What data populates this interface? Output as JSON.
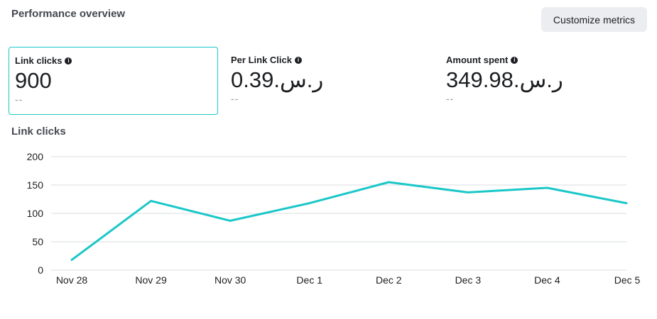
{
  "header": {
    "title": "Performance overview",
    "customize_label": "Customize metrics"
  },
  "metrics": [
    {
      "label": "Link clicks",
      "value": "900",
      "delta": "--",
      "selected": true
    },
    {
      "label": "Per Link Click",
      "value": "0.39.ر.س",
      "delta": "--",
      "selected": false
    },
    {
      "label": "Amount spent",
      "value": "349.98.ر.س",
      "delta": "--",
      "selected": false
    }
  ],
  "icons": {
    "info": "info-icon"
  },
  "colors": {
    "accent": "#1bc7c8",
    "line": "#1bc7c8",
    "grid": "#dadde1",
    "button_bg": "#ebedf0"
  },
  "chart_data": {
    "type": "line",
    "title": "Link clicks",
    "categories": [
      "Nov 28",
      "Nov 29",
      "Nov 30",
      "Dec 1",
      "Dec 2",
      "Dec 3",
      "Dec 4",
      "Dec 5"
    ],
    "values": [
      18,
      122,
      87,
      118,
      155,
      137,
      145,
      118
    ],
    "ylim": [
      0,
      200
    ],
    "yticks": [
      0,
      50,
      100,
      150,
      200
    ],
    "grid": true,
    "legend": "none"
  }
}
